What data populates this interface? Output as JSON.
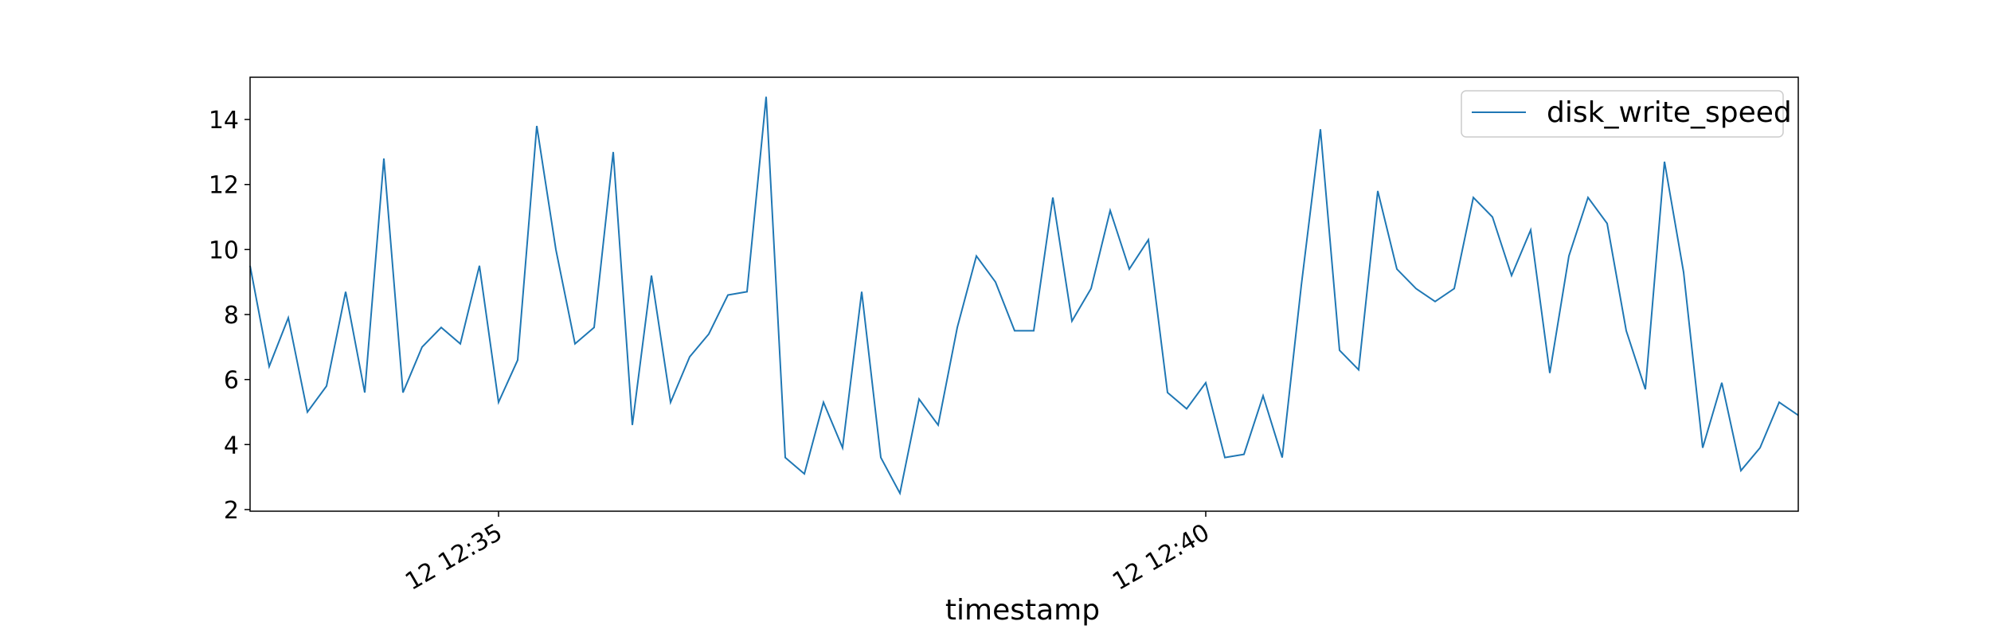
{
  "chart_data": {
    "type": "line",
    "title": "",
    "xlabel": "timestamp",
    "ylabel": "",
    "x_tick_labels": [
      "12 12:35",
      "12 12:40"
    ],
    "y_ticks": [
      2,
      4,
      6,
      8,
      10,
      12,
      14
    ],
    "ylim": [
      1.95,
      15.3
    ],
    "legend": {
      "placement": "upper right"
    },
    "grid": false,
    "series": [
      {
        "name": "disk_write_speed",
        "color": "#1f77b4",
        "values": [
          9.5,
          6.4,
          7.9,
          5.0,
          5.8,
          8.7,
          5.6,
          12.8,
          5.6,
          7.0,
          7.6,
          7.1,
          9.5,
          5.3,
          6.6,
          13.8,
          10.0,
          7.1,
          7.6,
          13.0,
          4.6,
          9.2,
          5.3,
          6.7,
          7.4,
          8.6,
          8.7,
          14.7,
          3.6,
          3.1,
          5.3,
          3.9,
          8.7,
          3.6,
          2.5,
          5.4,
          4.6,
          7.6,
          9.8,
          9.0,
          7.5,
          7.5,
          11.6,
          7.8,
          8.8,
          11.2,
          9.4,
          10.3,
          5.6,
          5.1,
          5.9,
          3.6,
          3.7,
          5.5,
          3.6,
          8.9,
          13.7,
          6.9,
          6.3,
          11.8,
          9.4,
          8.8,
          8.4,
          8.8,
          11.6,
          11.0,
          9.2,
          10.6,
          6.2,
          9.8,
          11.6,
          10.8,
          7.5,
          5.7,
          12.7,
          9.3,
          3.9,
          5.9,
          3.2,
          3.9,
          5.3,
          4.9
        ]
      }
    ]
  }
}
